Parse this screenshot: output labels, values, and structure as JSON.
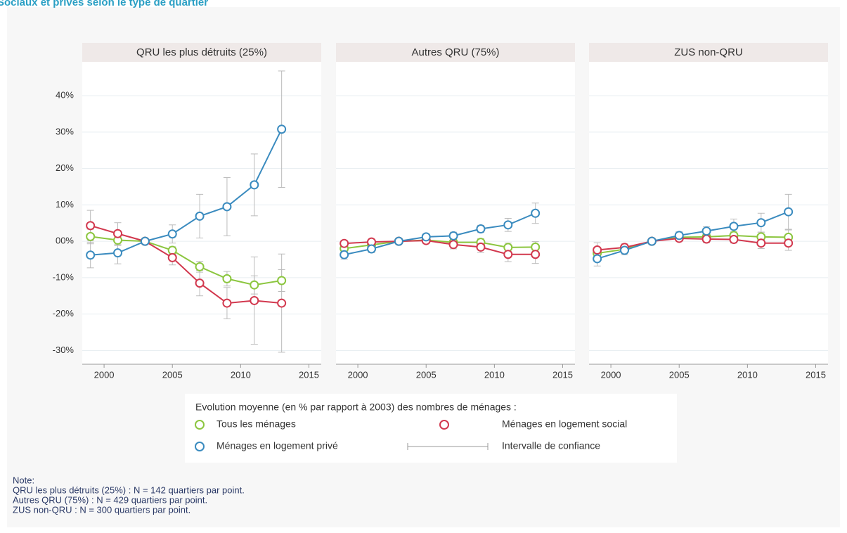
{
  "title": "Sociaux et privés selon le type de quartier",
  "legend_title": "Evolution moyenne (en % par rapport à 2003) des nombres de ménages :",
  "ci_label": "Intervalle de confiance",
  "notes": [
    "Note:",
    "QRU les plus détruits (25%) : N = 142 quartiers par point.",
    "Autres QRU (75%) : N = 429 quartiers par point.",
    "ZUS non-QRU : N = 300 quartiers par point."
  ],
  "chart_data": [
    {
      "type": "line",
      "title": "QRU les plus détruits (25%)",
      "x": [
        1999,
        2001,
        2003,
        2005,
        2007,
        2009,
        2011,
        2013
      ],
      "xlim": [
        1998.4,
        2015.9
      ],
      "xticks": [
        2000,
        2005,
        2010,
        2015
      ],
      "ylim": [
        -33.8,
        49.3
      ],
      "yticks": [
        {
          "value": -30,
          "label": "-30%"
        },
        {
          "value": -20,
          "label": "-20%"
        },
        {
          "value": -10,
          "label": "-10%"
        },
        {
          "value": 0,
          "label": "00%"
        },
        {
          "value": 10,
          "label": "10%"
        },
        {
          "value": 20,
          "label": "20%"
        },
        {
          "value": 30,
          "label": "30%"
        },
        {
          "value": 40,
          "label": "40%"
        }
      ],
      "grid": true,
      "series": [
        {
          "name": "Tous les ménages",
          "color": "#8cc63f",
          "values": [
            1.3,
            0.3,
            0,
            -2.5,
            -7,
            -10.3,
            -12,
            -10.8
          ],
          "errors": [
            2,
            1.5,
            0,
            1,
            1.5,
            2,
            2.5,
            3
          ]
        },
        {
          "name": "Ménages en logement social",
          "color": "#d2384e",
          "values": [
            4.3,
            2.1,
            0,
            -4.5,
            -11.5,
            -17,
            -16.3,
            -17
          ],
          "errors": [
            4.2,
            3,
            0,
            2,
            3.5,
            4.3,
            12,
            13.5
          ]
        },
        {
          "name": "Ménages en logement privé",
          "color": "#3a8bbf",
          "values": [
            -3.8,
            -3.2,
            0,
            2,
            6.9,
            9.5,
            15.5,
            30.8
          ],
          "errors": [
            3.5,
            3,
            0,
            2.5,
            6,
            8,
            8.5,
            16
          ]
        }
      ]
    },
    {
      "type": "line",
      "title": "Autres QRU (75%)",
      "x": [
        1999,
        2001,
        2003,
        2005,
        2007,
        2009,
        2011,
        2013
      ],
      "xlim": [
        1998.4,
        2015.9
      ],
      "xticks": [
        2000,
        2005,
        2010,
        2015
      ],
      "ylim": [
        -33.8,
        49.3
      ],
      "series": [
        {
          "name": "Tous les ménages",
          "color": "#8cc63f",
          "values": [
            -2,
            -1,
            0,
            0.3,
            -0.3,
            -0.3,
            -1.7,
            -1.6
          ],
          "errors": [
            1,
            1,
            0,
            0.7,
            1,
            1,
            1.2,
            1.5
          ]
        },
        {
          "name": "Ménages en logement social",
          "color": "#d2384e",
          "values": [
            -0.6,
            -0.2,
            0,
            0.2,
            -0.9,
            -1.6,
            -3.6,
            -3.6
          ],
          "errors": [
            0.8,
            0.8,
            0,
            0.8,
            1.2,
            1.5,
            2,
            2.5
          ]
        },
        {
          "name": "Ménages en logement privé",
          "color": "#3a8bbf",
          "values": [
            -3.7,
            -2.1,
            0,
            1.2,
            1.5,
            3.4,
            4.5,
            7.7
          ],
          "errors": [
            1.2,
            1,
            0,
            0.8,
            1,
            1,
            1.8,
            2.8
          ]
        }
      ]
    },
    {
      "type": "line",
      "title": "ZUS non-QRU",
      "x": [
        1999,
        2001,
        2003,
        2005,
        2007,
        2009,
        2011,
        2013
      ],
      "xlim": [
        1998.4,
        2015.9
      ],
      "xticks": [
        2000,
        2005,
        2010,
        2015
      ],
      "ylim": [
        -33.8,
        49.3
      ],
      "series": [
        {
          "name": "Tous les ménages",
          "color": "#8cc63f",
          "values": [
            -3.3,
            -2.2,
            0,
            1.1,
            1.2,
            1.6,
            1.2,
            1.1
          ],
          "errors": [
            1.5,
            1,
            0,
            0.8,
            1,
            1,
            1.3,
            2
          ]
        },
        {
          "name": "Ménages en logement social",
          "color": "#d2384e",
          "values": [
            -2.4,
            -1.7,
            0,
            0.8,
            0.6,
            0.5,
            -0.5,
            -0.5
          ],
          "errors": [
            2,
            1,
            0,
            0.8,
            1,
            1,
            1.5,
            2
          ]
        },
        {
          "name": "Ménages en logement privé",
          "color": "#3a8bbf",
          "values": [
            -4.8,
            -2.5,
            0,
            1.6,
            2.8,
            4.1,
            5.1,
            8.1
          ],
          "errors": [
            2,
            1.2,
            0,
            1,
            1.2,
            2,
            2.6,
            4.8
          ]
        }
      ]
    }
  ]
}
